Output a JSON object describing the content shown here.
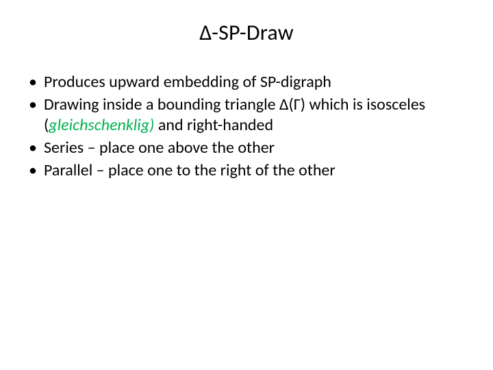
{
  "slide": {
    "title": "Δ-SP-Draw",
    "bullets": [
      {
        "text": "Produces upward embedding of SP-digraph"
      },
      {
        "pre": "Drawing inside a bounding triangle Δ(Γ) which is isosceles (",
        "em": "gleichschenklig)",
        "post": " and right-handed"
      },
      {
        "text": "Series – place one above the other"
      },
      {
        "text": "Parallel – place one to the right of the other"
      }
    ],
    "colors": {
      "background": "#ffffff",
      "text": "#000000",
      "italic_accent": "#00b050"
    },
    "typography": {
      "title_fontsize": 32,
      "body_fontsize": 24,
      "font_family": "Calibri"
    }
  }
}
